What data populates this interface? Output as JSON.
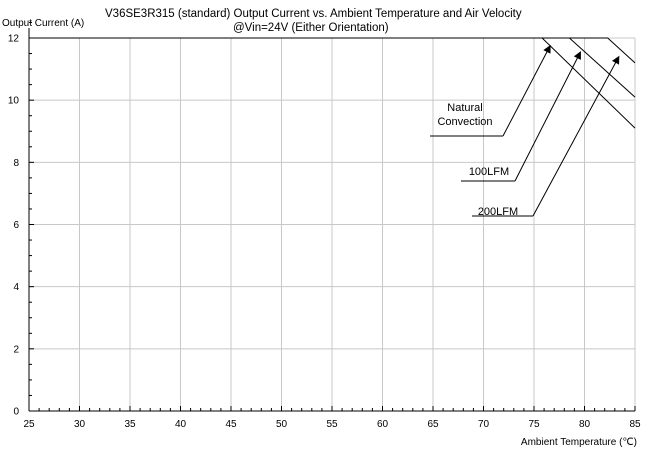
{
  "chart_data": {
    "type": "line",
    "title": "V36SE3R315 (standard)  Output Current vs. Ambient Temperature and Air Velocity",
    "subtitle": "@Vin=24V (Either Orientation)",
    "xlabel": "Ambient Temperature (℃)",
    "ylabel": "Output Current (A)",
    "xlim": [
      25,
      85
    ],
    "ylim": [
      0,
      12
    ],
    "x_ticks": [
      "25",
      "30",
      "35",
      "40",
      "45",
      "50",
      "55",
      "60",
      "65",
      "70",
      "75",
      "80",
      "85"
    ],
    "y_ticks": [
      "0",
      "2",
      "4",
      "6",
      "8",
      "10",
      "12"
    ],
    "grid": true,
    "series": [
      {
        "name": "Natural Convection",
        "x": [
          25,
          75.8,
          85
        ],
        "y": [
          12,
          12,
          9.1
        ]
      },
      {
        "name": "100LFM",
        "x": [
          25,
          78.5,
          85
        ],
        "y": [
          12,
          12,
          10.1
        ]
      },
      {
        "name": "200LFM",
        "x": [
          25,
          82.3,
          85
        ],
        "y": [
          12,
          12,
          11.2
        ]
      }
    ],
    "annotations": [
      {
        "text_lines": [
          "Natural",
          "Convection"
        ],
        "series": "Natural Convection"
      },
      {
        "text_lines": [
          "100LFM"
        ],
        "series": "100LFM"
      },
      {
        "text_lines": [
          "200LFM"
        ],
        "series": "200LFM"
      }
    ]
  }
}
